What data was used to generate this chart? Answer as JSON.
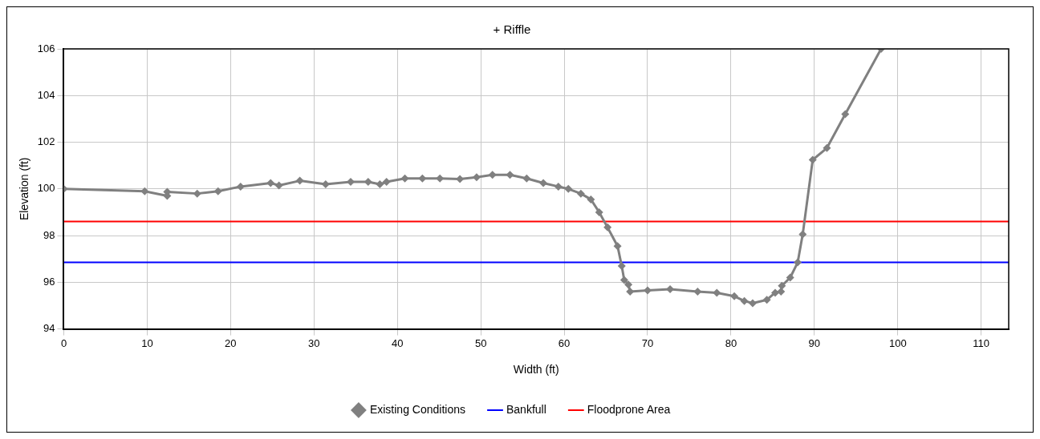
{
  "chart_data": {
    "type": "line",
    "title": "+ Riffle",
    "xlabel": "Width (ft)",
    "ylabel": "Elevation (ft)",
    "series": [
      {
        "name": "Existing Conditions",
        "color": "#808080",
        "marker": "diamond",
        "x": [
          0,
          9.7,
          12.4,
          12.4,
          16.0,
          18.5,
          21.2,
          24.8,
          25.8,
          28.3,
          31.4,
          34.4,
          36.5,
          37.9,
          38.7,
          40.9,
          43.0,
          45.1,
          47.5,
          49.5,
          51.4,
          53.5,
          55.5,
          57.5,
          59.3,
          60.5,
          62.0,
          63.2,
          64.2,
          65.2,
          66.4,
          66.9,
          67.2,
          67.7,
          67.9,
          70.0,
          72.7,
          76.0,
          78.3,
          80.4,
          81.6,
          82.6,
          84.3,
          85.3,
          86.0,
          86.1,
          87.1,
          88.0,
          88.6,
          89.8,
          91.5,
          93.7,
          98.0
        ],
        "values": [
          100.0,
          99.9,
          99.7,
          99.87,
          99.8,
          99.9,
          100.1,
          100.25,
          100.15,
          100.35,
          100.2,
          100.3,
          100.3,
          100.2,
          100.3,
          100.45,
          100.45,
          100.45,
          100.42,
          100.5,
          100.6,
          100.6,
          100.45,
          100.25,
          100.1,
          100.0,
          99.8,
          99.55,
          99.0,
          98.35,
          97.55,
          96.7,
          96.1,
          95.9,
          95.6,
          95.65,
          95.7,
          95.6,
          95.55,
          95.4,
          95.2,
          95.1,
          95.25,
          95.55,
          95.6,
          95.85,
          96.2,
          96.85,
          98.05,
          101.25,
          101.75,
          103.2,
          106
        ]
      }
    ],
    "ref_lines": [
      {
        "axis": "y",
        "value": 96.85,
        "label": "Bankfull",
        "color": "#0000ff"
      },
      {
        "axis": "y",
        "value": 98.6,
        "label": "Floodprone Area",
        "color": "#ff0000"
      }
    ],
    "xlim": [
      0,
      113.3
    ],
    "xticks": [
      0,
      10,
      20,
      30,
      40,
      50,
      60,
      70,
      80,
      90,
      100,
      110
    ],
    "ylim": [
      94,
      106
    ],
    "yticks": [
      94,
      96,
      98,
      100,
      102,
      104,
      106
    ],
    "grid": true,
    "legend": "bottom"
  }
}
